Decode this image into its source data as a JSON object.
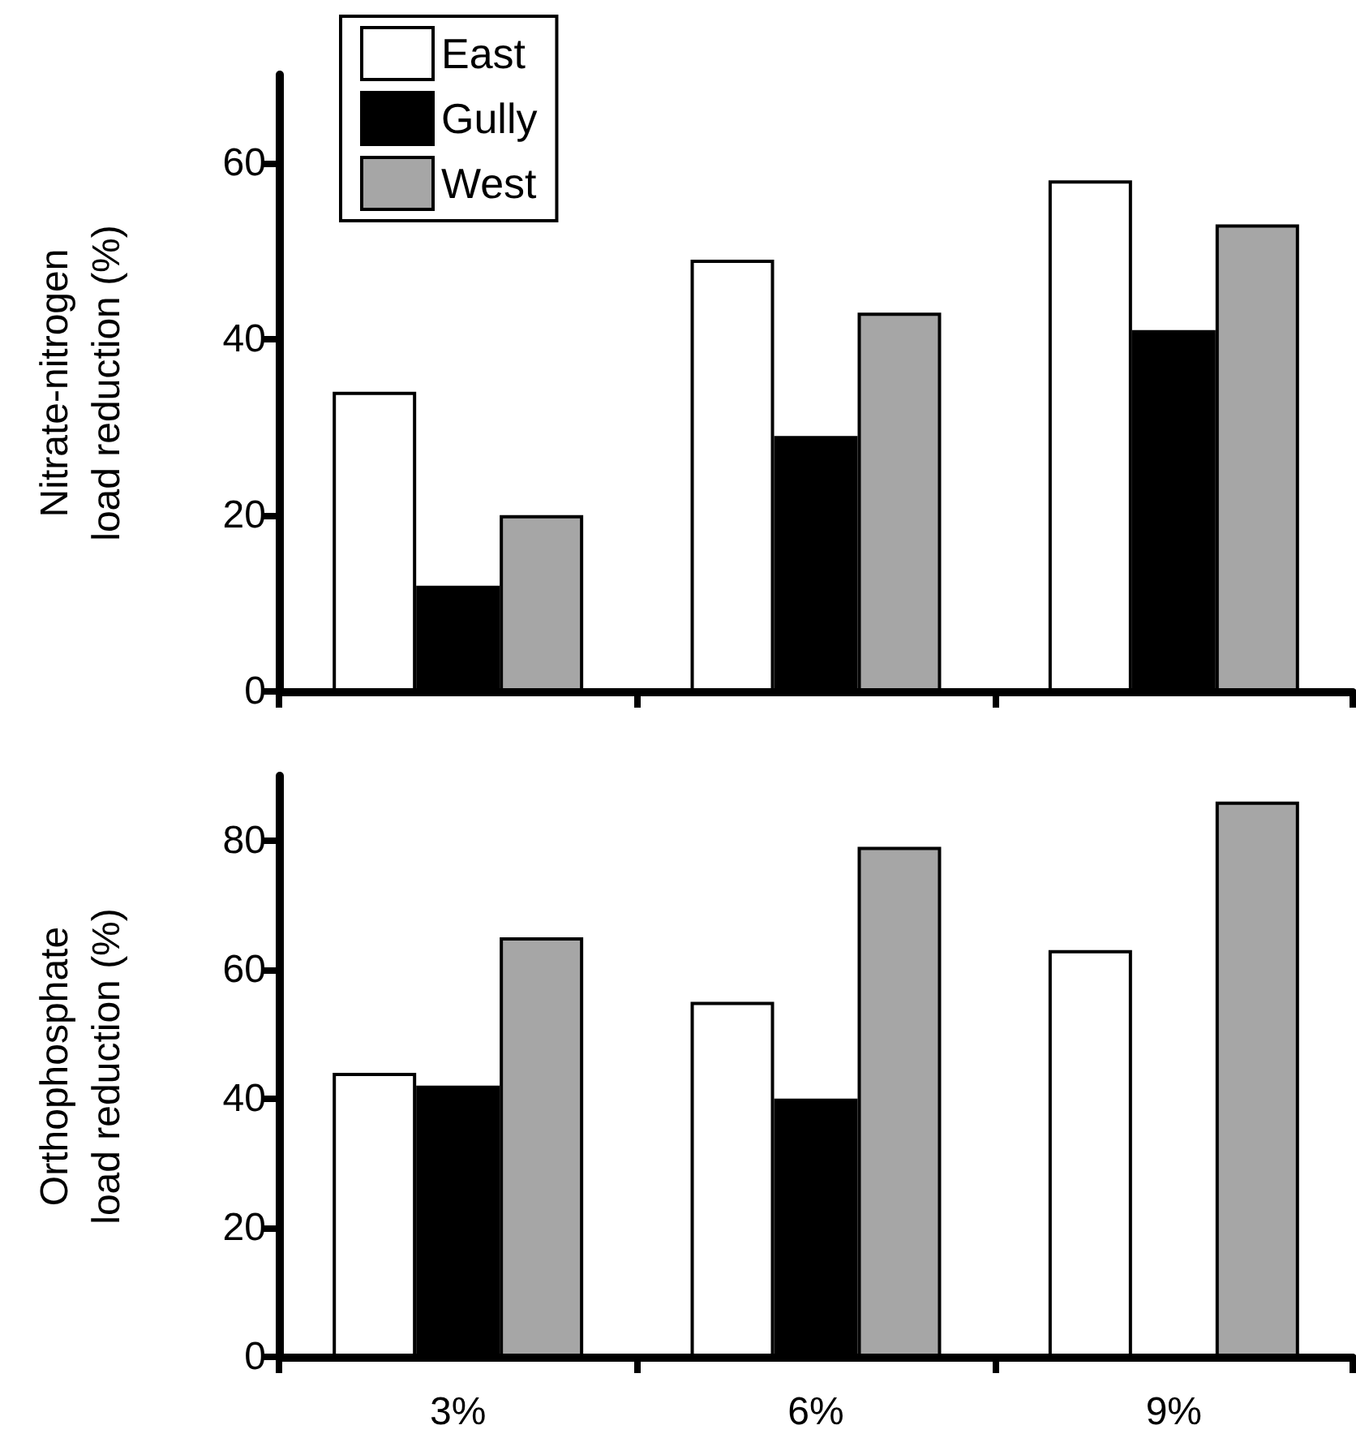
{
  "chart_data": [
    {
      "type": "bar",
      "ylabel": "Nitrate-nitrogen\nload reduction (%)",
      "categories": [
        null,
        null,
        null
      ],
      "series": [
        {
          "name": "East",
          "color": "#ffffff",
          "values": [
            34,
            49,
            58
          ]
        },
        {
          "name": "Gully",
          "color": "#000000",
          "values": [
            12,
            29,
            41
          ]
        },
        {
          "name": "West",
          "color": "#a6a6a6",
          "values": [
            20,
            43,
            53
          ]
        }
      ],
      "ylim": [
        0,
        70
      ],
      "yticks": [
        0,
        20,
        40,
        60
      ],
      "legend": "top left",
      "tick_labels": "y"
    },
    {
      "type": "bar",
      "ylabel": "Orthophosphate\nload reduction (%)",
      "categories": [
        "3%",
        "6%",
        "9%"
      ],
      "series": [
        {
          "color": "#ffffff",
          "values": [
            44,
            55,
            63
          ]
        },
        {
          "color": "#000000",
          "values": [
            42,
            40,
            null
          ]
        },
        {
          "color": "#a6a6a6",
          "values": [
            65,
            79,
            86
          ]
        }
      ],
      "ylim": [
        0,
        90
      ],
      "yticks": [
        0,
        20,
        40,
        60,
        80
      ],
      "legend": false
    }
  ]
}
